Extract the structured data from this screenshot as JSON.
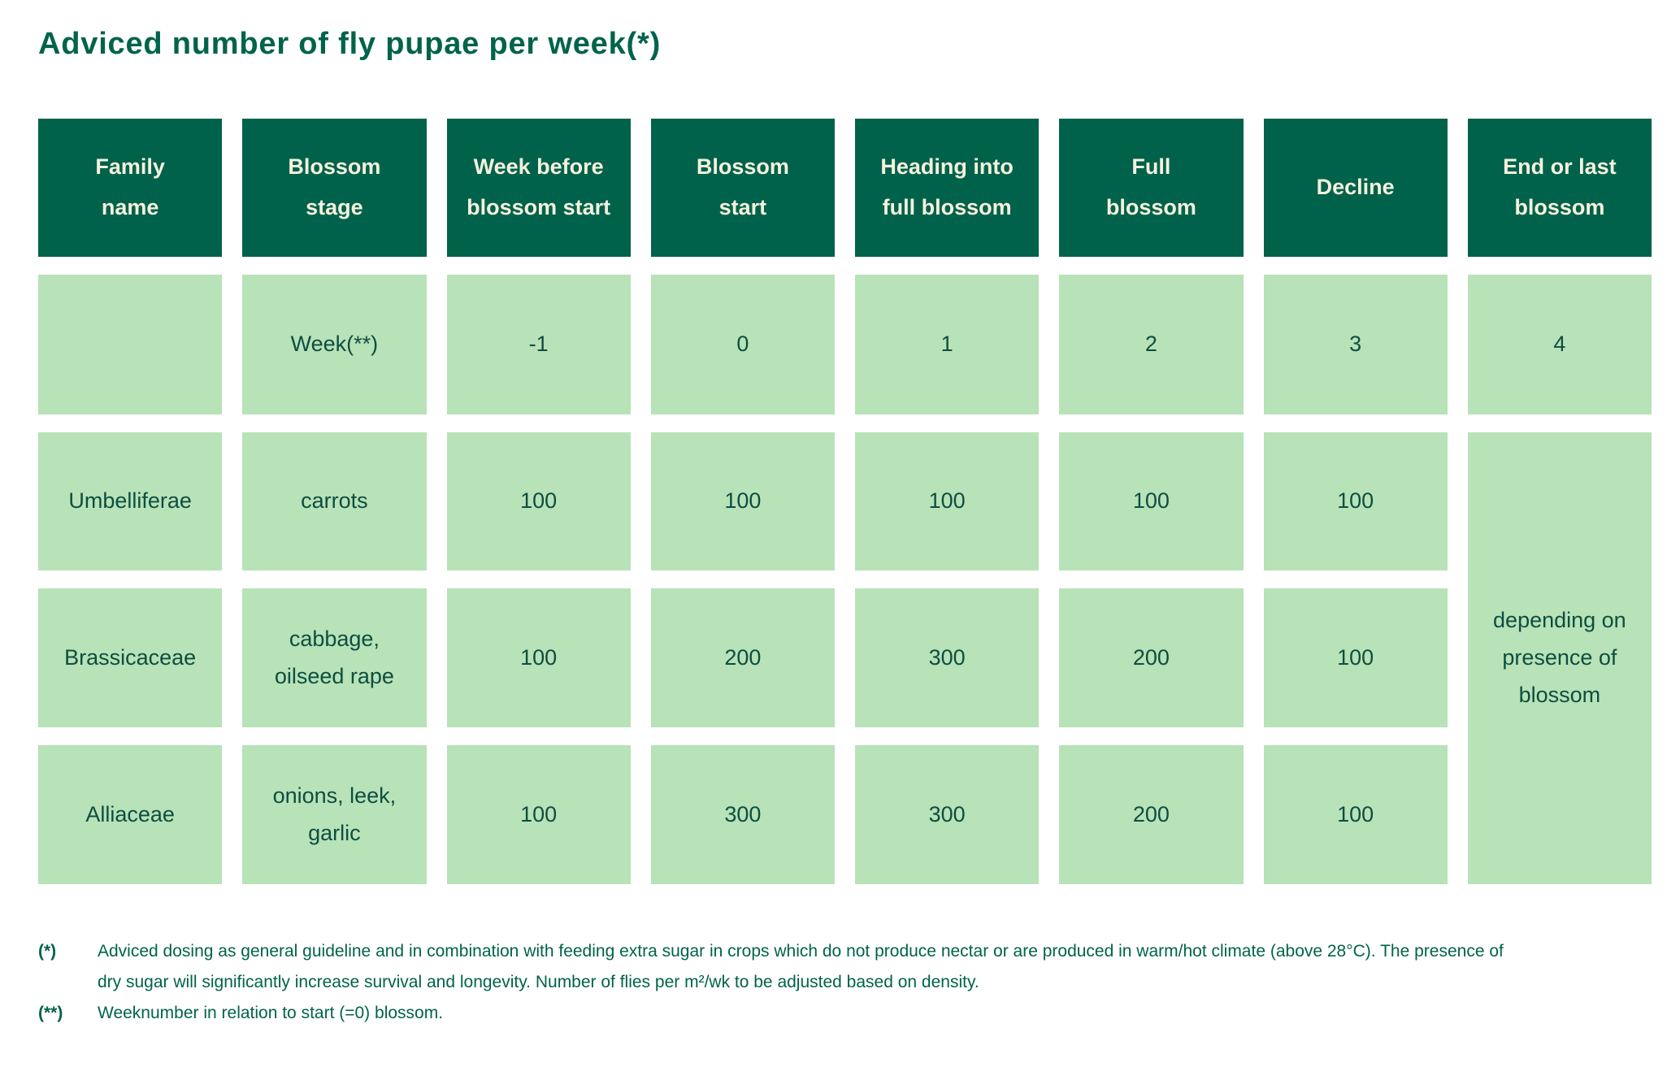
{
  "title": "Adviced number of fly pupae per week(*)",
  "colors": {
    "header_bg": "#00624A",
    "header_text": "#F5F1DE",
    "cell_bg": "#B8E2B8",
    "cell_text": "#0E4E40",
    "accent_text": "#00634B"
  },
  "table": {
    "headers": [
      "Family\nname",
      "Blossom\nstage",
      "Week before\nblossom start",
      "Blossom\nstart",
      "Heading into\nfull blossom",
      "Full\nblossom",
      "Decline",
      "End or last\nblossom"
    ],
    "week_row": {
      "label": "Week(**)",
      "values": [
        "-1",
        "0",
        "1",
        "2",
        "3",
        "4"
      ]
    },
    "rows": [
      {
        "family": "Umbelliferae",
        "stage": "carrots",
        "values": [
          "100",
          "100",
          "100",
          "100",
          "100"
        ]
      },
      {
        "family": "Brassicaceae",
        "stage": "cabbage,\noilseed rape",
        "values": [
          "100",
          "200",
          "300",
          "200",
          "100"
        ]
      },
      {
        "family": "Alliaceae",
        "stage": "onions, leek,\ngarlic",
        "values": [
          "100",
          "300",
          "300",
          "200",
          "100"
        ]
      }
    ],
    "merged_note": "depending on\npresence of\nblossom"
  },
  "footnotes": [
    {
      "marker": "(*)",
      "text": "Adviced dosing as general guideline and in combination with feeding extra sugar in crops which do not produce nectar or are produced in warm/hot climate (above 28°C). The presence of dry sugar will significantly increase survival and longevity. Number of flies per m²/wk to be adjusted based on density."
    },
    {
      "marker": "(**)",
      "text": "Weeknumber in relation to start (=0) blossom."
    }
  ],
  "chart_data": {
    "type": "table",
    "title": "Adviced number of fly pupae per week(*)",
    "columns": [
      "Family name",
      "Blossom stage",
      "Week before blossom start (-1)",
      "Blossom start (0)",
      "Heading into full blossom (1)",
      "Full blossom (2)",
      "Decline (3)",
      "End or last blossom (4)"
    ],
    "rows": [
      [
        "Umbelliferae",
        "carrots",
        100,
        100,
        100,
        100,
        100,
        "depending on presence of blossom"
      ],
      [
        "Brassicaceae",
        "cabbage, oilseed rape",
        100,
        200,
        300,
        200,
        100,
        "depending on presence of blossom"
      ],
      [
        "Alliaceae",
        "onions, leek, garlic",
        100,
        300,
        300,
        200,
        100,
        "depending on presence of blossom"
      ]
    ]
  }
}
